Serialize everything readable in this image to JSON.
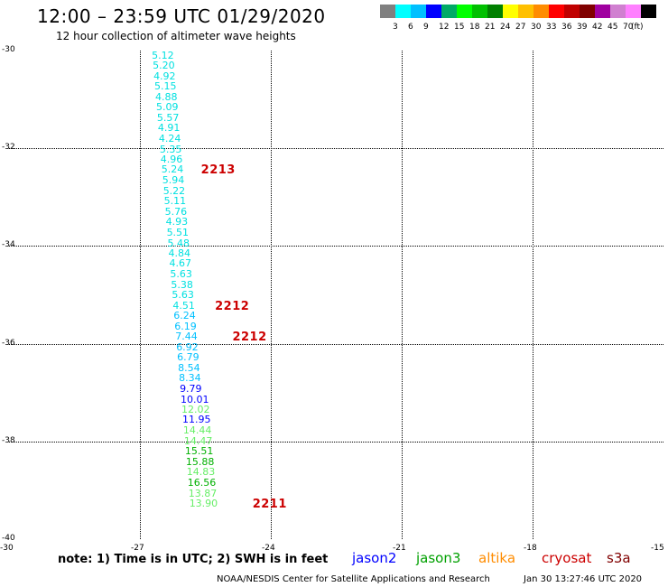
{
  "header": {
    "title": "12:00 – 23:59 UTC 01/29/2020",
    "subtitle": "12 hour collection of altimeter wave heights"
  },
  "legend": {
    "unit": "(ft)",
    "items": [
      {
        "label": "",
        "color": "#808080"
      },
      {
        "label": "3",
        "color": "#00ffff"
      },
      {
        "label": "6",
        "color": "#00c0ff"
      },
      {
        "label": "9",
        "color": "#0000ff"
      },
      {
        "label": "12",
        "color": "#00aa66"
      },
      {
        "label": "15",
        "color": "#00ff00"
      },
      {
        "label": "18",
        "color": "#00c000"
      },
      {
        "label": "21",
        "color": "#008000"
      },
      {
        "label": "24",
        "color": "#ffff00"
      },
      {
        "label": "27",
        "color": "#ffc000"
      },
      {
        "label": "30",
        "color": "#ff8c00"
      },
      {
        "label": "33",
        "color": "#ff0000"
      },
      {
        "label": "36",
        "color": "#c00000"
      },
      {
        "label": "39",
        "color": "#800000"
      },
      {
        "label": "42",
        "color": "#a000a0"
      },
      {
        "label": "45",
        "color": "#d080d0"
      },
      {
        "label": "70",
        "color": "#ff80ff"
      },
      {
        "label": "",
        "color": "#000000"
      }
    ]
  },
  "map": {
    "lat_ticks": [
      "-30",
      "-32",
      "-34",
      "-36",
      "-38",
      "-40"
    ],
    "lon_ticks": [
      "-30",
      "-27",
      "-24",
      "-21",
      "-18",
      "-15"
    ],
    "lon_range": [
      -30,
      -15
    ],
    "lat_range": [
      -30,
      -40
    ],
    "observations": [
      {
        "lat": -30.09,
        "lon": -26.48,
        "value": "5.12",
        "color": "#00e0e0"
      },
      {
        "lat": -30.3,
        "lon": -26.46,
        "value": "5.20",
        "color": "#00e0e0"
      },
      {
        "lat": -30.52,
        "lon": -26.44,
        "value": "4.92",
        "color": "#00e0e0"
      },
      {
        "lat": -30.73,
        "lon": -26.42,
        "value": "5.15",
        "color": "#00e0e0"
      },
      {
        "lat": -30.94,
        "lon": -26.4,
        "value": "4.88",
        "color": "#00e0e0"
      },
      {
        "lat": -31.15,
        "lon": -26.38,
        "value": "5.09",
        "color": "#00e0e0"
      },
      {
        "lat": -31.37,
        "lon": -26.36,
        "value": "5.57",
        "color": "#00e0e0"
      },
      {
        "lat": -31.58,
        "lon": -26.34,
        "value": "4.91",
        "color": "#00e0e0"
      },
      {
        "lat": -31.79,
        "lon": -26.32,
        "value": "4.24",
        "color": "#00e0e0"
      },
      {
        "lat": -32.01,
        "lon": -26.3,
        "value": "5.35",
        "color": "#00e0e0"
      },
      {
        "lat": -32.22,
        "lon": -26.28,
        "value": "4.96",
        "color": "#00e0e0"
      },
      {
        "lat": -32.43,
        "lon": -26.26,
        "value": "5.24",
        "color": "#00e0e0"
      },
      {
        "lat": -32.65,
        "lon": -26.24,
        "value": "5.94",
        "color": "#00e0e0"
      },
      {
        "lat": -32.86,
        "lon": -26.22,
        "value": "5.22",
        "color": "#00e0e0"
      },
      {
        "lat": -33.07,
        "lon": -26.2,
        "value": "5.11",
        "color": "#00e0e0"
      },
      {
        "lat": -33.29,
        "lon": -26.18,
        "value": "5.76",
        "color": "#00e0e0"
      },
      {
        "lat": -33.5,
        "lon": -26.16,
        "value": "4.93",
        "color": "#00e0e0"
      },
      {
        "lat": -33.71,
        "lon": -26.14,
        "value": "5.51",
        "color": "#00e0e0"
      },
      {
        "lat": -33.93,
        "lon": -26.12,
        "value": "5.48",
        "color": "#00e0e0"
      },
      {
        "lat": -34.14,
        "lon": -26.1,
        "value": "4.84",
        "color": "#00e0e0"
      },
      {
        "lat": -34.35,
        "lon": -26.08,
        "value": "4.67",
        "color": "#00e0e0"
      },
      {
        "lat": -34.57,
        "lon": -26.06,
        "value": "5.63",
        "color": "#00e0e0"
      },
      {
        "lat": -34.78,
        "lon": -26.04,
        "value": "5.38",
        "color": "#00e0e0"
      },
      {
        "lat": -34.99,
        "lon": -26.02,
        "value": "5.63",
        "color": "#00e0e0"
      },
      {
        "lat": -35.21,
        "lon": -26.0,
        "value": "4.51",
        "color": "#00e0e0"
      },
      {
        "lat": -35.42,
        "lon": -25.98,
        "value": "6.24",
        "color": "#00c0ff"
      },
      {
        "lat": -35.63,
        "lon": -25.96,
        "value": "6.19",
        "color": "#00c0ff"
      },
      {
        "lat": -35.85,
        "lon": -25.94,
        "value": "7.44",
        "color": "#00c0ff"
      },
      {
        "lat": -36.06,
        "lon": -25.92,
        "value": "6.92",
        "color": "#00c0ff"
      },
      {
        "lat": -36.27,
        "lon": -25.9,
        "value": "6.79",
        "color": "#00c0ff"
      },
      {
        "lat": -36.49,
        "lon": -25.88,
        "value": "8.54",
        "color": "#00c0ff"
      },
      {
        "lat": -36.7,
        "lon": -25.86,
        "value": "8.34",
        "color": "#00c0ff"
      },
      {
        "lat": -36.91,
        "lon": -25.84,
        "value": "9.79",
        "color": "#0000ff"
      },
      {
        "lat": -37.13,
        "lon": -25.82,
        "value": "10.01",
        "color": "#0000ff"
      },
      {
        "lat": -37.34,
        "lon": -25.8,
        "value": "12.02",
        "color": "#66ee66"
      },
      {
        "lat": -37.55,
        "lon": -25.78,
        "value": "11.95",
        "color": "#0000ff"
      },
      {
        "lat": -37.77,
        "lon": -25.76,
        "value": "14.44",
        "color": "#66ee66"
      },
      {
        "lat": -37.98,
        "lon": -25.74,
        "value": "14.47",
        "color": "#66ee66"
      },
      {
        "lat": -38.19,
        "lon": -25.72,
        "value": "15.51",
        "color": "#00b000"
      },
      {
        "lat": -38.41,
        "lon": -25.7,
        "value": "15.88",
        "color": "#00b000"
      },
      {
        "lat": -38.62,
        "lon": -25.68,
        "value": "14.83",
        "color": "#66ee66"
      },
      {
        "lat": -38.83,
        "lon": -25.66,
        "value": "16.56",
        "color": "#00b000"
      },
      {
        "lat": -39.05,
        "lon": -25.64,
        "value": "13.87",
        "color": "#66ee66"
      },
      {
        "lat": -39.26,
        "lon": -25.62,
        "value": "13.90",
        "color": "#66ee66"
      }
    ],
    "cycle_labels": [
      {
        "lat": -32.43,
        "lon": -25.6,
        "text": "2213"
      },
      {
        "lat": -35.21,
        "lon": -25.28,
        "text": "2212"
      },
      {
        "lat": -35.85,
        "lon": -24.88,
        "text": "2212"
      },
      {
        "lat": -39.26,
        "lon": -24.42,
        "text": "2211"
      }
    ]
  },
  "footer": {
    "note": "note:  1) Time is in UTC;  2) SWH is in feet",
    "satellites": [
      {
        "name": "jason2",
        "color": "#0000ff"
      },
      {
        "name": "jason3",
        "color": "#00a000"
      },
      {
        "name": "altika",
        "color": "#ff8c00"
      },
      {
        "name": "cryosat",
        "color": "#cc0000"
      },
      {
        "name": "s3a",
        "color": "#800000"
      }
    ],
    "credit": "NOAA/NESDIS Center for Satellite Applications and Research",
    "timestamp": "Jan 30 13:27:46 UTC 2020"
  }
}
